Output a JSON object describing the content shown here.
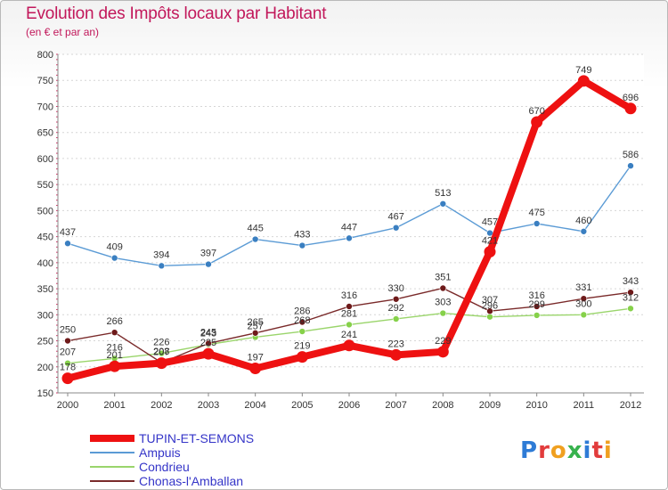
{
  "header": {
    "title": "Evolution des Impôts locaux par Habitant",
    "subtitle": "(en € et par an)"
  },
  "logo": {
    "text": "Proxiti"
  },
  "chart_data": {
    "type": "line",
    "title": "Evolution des Impôts locaux par Habitant",
    "subtitle": "(en € et par an)",
    "xlabel": "",
    "ylabel": "",
    "x": [
      "2000",
      "2001",
      "2002",
      "2003",
      "2004",
      "2005",
      "2006",
      "2007",
      "2008",
      "2009",
      "2010",
      "2011",
      "2012"
    ],
    "ylim": [
      150,
      800
    ],
    "yticks": [
      "150",
      "200",
      "250",
      "300",
      "350",
      "400",
      "450",
      "500",
      "550",
      "600",
      "650",
      "700",
      "750",
      "800"
    ],
    "grid": "horizontal",
    "legend_position": "bottom-left",
    "series": [
      {
        "name": "TUPIN-ET-SEMONS",
        "color": "#ee1111",
        "marker_color": "#ee1111",
        "values": [
          178,
          201,
          207,
          225,
          197,
          219,
          241,
          223,
          229,
          421,
          670,
          749,
          696
        ],
        "labels": [
          "178",
          "201",
          "207",
          "225",
          "197",
          "219",
          "241",
          "223",
          "229",
          "421",
          "670",
          "749",
          "696"
        ]
      },
      {
        "name": "Ampuis",
        "color": "#5b9bd5",
        "marker_color": "#3a7fc1",
        "values": [
          437,
          409,
          394,
          397,
          445,
          433,
          447,
          467,
          513,
          457,
          475,
          460,
          586
        ],
        "labels": [
          "437",
          "409",
          "394",
          "397",
          "445",
          "433",
          "447",
          "467",
          "513",
          "457",
          "475",
          "460",
          "586"
        ]
      },
      {
        "name": "Condrieu",
        "color": "#9ad56b",
        "marker_color": "#86d14a",
        "values": [
          207,
          216,
          226,
          243,
          257,
          268,
          281,
          292,
          303,
          296,
          299,
          300,
          312
        ],
        "labels": [
          "207",
          "216",
          "226",
          "243",
          "257",
          "268",
          "281",
          "292",
          "303",
          "296",
          "299",
          "300",
          "312"
        ]
      },
      {
        "name": "Chonas-l'Amballan",
        "color": "#7a2a2a",
        "marker_color": "#6e1a1a",
        "values": [
          250,
          266,
          208,
          245,
          265,
          286,
          316,
          330,
          351,
          307,
          316,
          331,
          343
        ],
        "labels": [
          "250",
          "266",
          "208",
          "245",
          "265",
          "286",
          "316",
          "330",
          "351",
          "307",
          "316",
          "331",
          "343"
        ]
      }
    ]
  }
}
